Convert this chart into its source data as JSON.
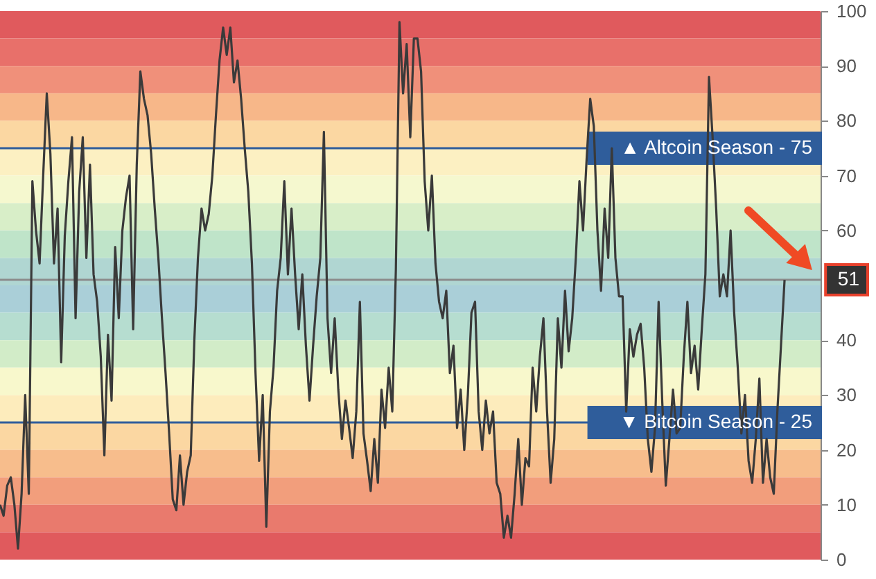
{
  "chart_data": {
    "type": "line",
    "categories": [
      null,
      null,
      null,
      null,
      null,
      null,
      null,
      null,
      null,
      null,
      null,
      null,
      null,
      null,
      null,
      null,
      null,
      null,
      null,
      null,
      null,
      null,
      null,
      null,
      null,
      null,
      null,
      null,
      null,
      null,
      null,
      null,
      null,
      null,
      null,
      null,
      null,
      null,
      null,
      null,
      null,
      null,
      null,
      null,
      null,
      null,
      null,
      null,
      null,
      null,
      null,
      null,
      null,
      null,
      null,
      null,
      null,
      null,
      null,
      null,
      null,
      null,
      null,
      null,
      null,
      null,
      null,
      null,
      null,
      null,
      null,
      null,
      null,
      null,
      null,
      null,
      null,
      null,
      null,
      null,
      null,
      null,
      null,
      null,
      null,
      null,
      null,
      null,
      null,
      null,
      null,
      null,
      null,
      null,
      null,
      null,
      null,
      null,
      null,
      null,
      null,
      null,
      null,
      null,
      null,
      null,
      null,
      null,
      null,
      null,
      null,
      null,
      null,
      null,
      null,
      null,
      null,
      null,
      null,
      null,
      null,
      null,
      null,
      null,
      null,
      null,
      null,
      null,
      null,
      null,
      null,
      null,
      null,
      null,
      null,
      null,
      null,
      null,
      null,
      null,
      null,
      null,
      null,
      null,
      null,
      null,
      null,
      null,
      null,
      null,
      null,
      null,
      null,
      null,
      null,
      null,
      null,
      null,
      null,
      null,
      null,
      null,
      null,
      null,
      null,
      null,
      null,
      null,
      null,
      null,
      null,
      null,
      null,
      null,
      null,
      null,
      null,
      null,
      null,
      null,
      null,
      null,
      null,
      null,
      null,
      null,
      null,
      null,
      null,
      null,
      null,
      null,
      null,
      null,
      null,
      null,
      null,
      null,
      null,
      null,
      null,
      null,
      null,
      null,
      null,
      null,
      null,
      null,
      null,
      null,
      null,
      null,
      null,
      null,
      null,
      null,
      null,
      null,
      null,
      null,
      null,
      null,
      null,
      null,
      null,
      null,
      null,
      null,
      null
    ],
    "series": [
      {
        "color": "#3a3a3a",
        "values": [
          10,
          8,
          13.5,
          15,
          10,
          2,
          12,
          30,
          12,
          69,
          60,
          54,
          70,
          85,
          74,
          54,
          64,
          36,
          59,
          69,
          77,
          44,
          67,
          77,
          55,
          72,
          52,
          47,
          37,
          19,
          41,
          29,
          57,
          44,
          60,
          66,
          70,
          42,
          72,
          89,
          84,
          81,
          74,
          64,
          55,
          44,
          34,
          23,
          11,
          9,
          19,
          10,
          16,
          19,
          40,
          55,
          64,
          60,
          63,
          70,
          81,
          91,
          97,
          92,
          97,
          87,
          91,
          84,
          75,
          67,
          54,
          34,
          18,
          30,
          6,
          27,
          35,
          49,
          55,
          69,
          52,
          64,
          52,
          42,
          52,
          39,
          29,
          39,
          48,
          55,
          78,
          44,
          34,
          44,
          31,
          22,
          29,
          24,
          18.5,
          27,
          47,
          23,
          18,
          12.5,
          22,
          14,
          31,
          24,
          35,
          27,
          53,
          98,
          85,
          94,
          77,
          95,
          95,
          89,
          69,
          60,
          70,
          54,
          47,
          44,
          49,
          34,
          39,
          24,
          31,
          20,
          30,
          45,
          47,
          27,
          20,
          29,
          23,
          27,
          14,
          12,
          4,
          8,
          4,
          12,
          22,
          10,
          18.5,
          17,
          35,
          27,
          37,
          44,
          27,
          14,
          22,
          44,
          35,
          49,
          38,
          44,
          55,
          69,
          60,
          73,
          84,
          79,
          60,
          49,
          64,
          55,
          75,
          55,
          48,
          48,
          27,
          42,
          37,
          41,
          43,
          35,
          22,
          16,
          24,
          47,
          29,
          13.5,
          22,
          31,
          23,
          24,
          37,
          47,
          34,
          39,
          31,
          42,
          52,
          88,
          77,
          64,
          48,
          52,
          48,
          60,
          45,
          35,
          23,
          30,
          18,
          14,
          22,
          33,
          14,
          22,
          15,
          12,
          27,
          39,
          51,
          null,
          null,
          null,
          null,
          null,
          null,
          null,
          null,
          null,
          null
        ]
      }
    ],
    "ylim": [
      0,
      100
    ],
    "yticks": [
      0,
      10,
      20,
      30,
      40,
      60,
      70,
      80,
      90,
      100
    ],
    "tick_labels": "y",
    "grid": false,
    "ref_lines": [
      {
        "axis": "y",
        "value": 75,
        "label": "▲ Altcoin Season - 75",
        "color": "#2f5d9b"
      },
      {
        "axis": "y",
        "value": 25,
        "label": "▼ Bitcoin Season - 25",
        "color": "#2f5d9b"
      },
      {
        "axis": "y",
        "value": 51,
        "label": "51",
        "color": "#8c8c8c"
      }
    ],
    "bands": [
      {
        "axis": "y",
        "from": 95,
        "to": 100,
        "color": "#e05a5d"
      },
      {
        "axis": "y",
        "from": 90,
        "to": 95,
        "color": "#e8706a"
      },
      {
        "axis": "y",
        "from": 85,
        "to": 90,
        "color": "#f0907a"
      },
      {
        "axis": "y",
        "from": 80,
        "to": 85,
        "color": "#f7b789"
      },
      {
        "axis": "y",
        "from": 75,
        "to": 80,
        "color": "#fbd7a2"
      },
      {
        "axis": "y",
        "from": 70,
        "to": 75,
        "color": "#fcf0c2"
      },
      {
        "axis": "y",
        "from": 65,
        "to": 70,
        "color": "#f5f8cf"
      },
      {
        "axis": "y",
        "from": 60,
        "to": 65,
        "color": "#d8eec8"
      },
      {
        "axis": "y",
        "from": 55,
        "to": 60,
        "color": "#bfe4c9"
      },
      {
        "axis": "y",
        "from": 50,
        "to": 55,
        "color": "#b0d6d2"
      },
      {
        "axis": "y",
        "from": 45,
        "to": 50,
        "color": "#aacfd8"
      },
      {
        "axis": "y",
        "from": 40,
        "to": 45,
        "color": "#b6ddd0"
      },
      {
        "axis": "y",
        "from": 35,
        "to": 40,
        "color": "#d2ecc8"
      },
      {
        "axis": "y",
        "from": 30,
        "to": 35,
        "color": "#f8f8cc"
      },
      {
        "axis": "y",
        "from": 25,
        "to": 30,
        "color": "#fdecbc"
      },
      {
        "axis": "y",
        "from": 20,
        "to": 25,
        "color": "#fbd7a2"
      },
      {
        "axis": "y",
        "from": 15,
        "to": 20,
        "color": "#f7bd8c"
      },
      {
        "axis": "y",
        "from": 10,
        "to": 15,
        "color": "#f29e7c"
      },
      {
        "axis": "y",
        "from": 5,
        "to": 10,
        "color": "#e97a6d"
      },
      {
        "axis": "y",
        "from": 0,
        "to": 5,
        "color": "#e05a5d"
      }
    ]
  }
}
